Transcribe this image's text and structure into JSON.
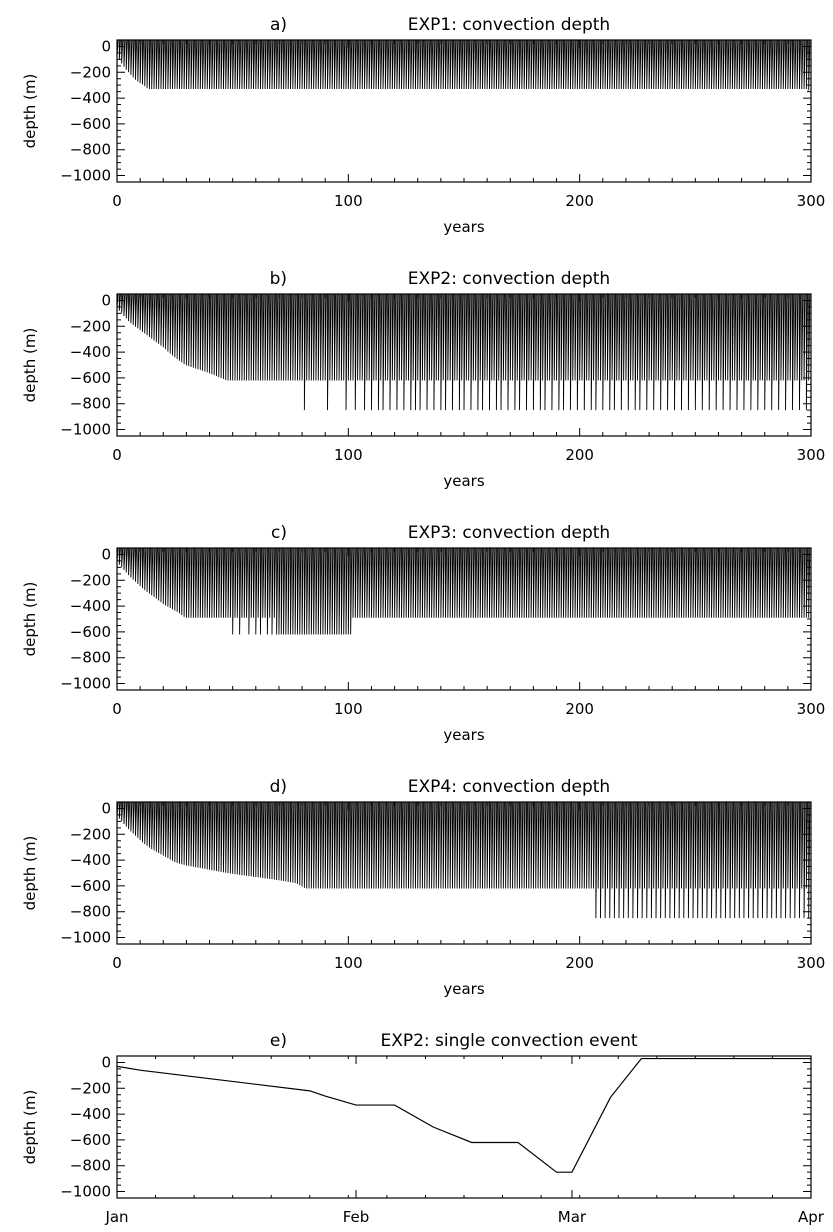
{
  "figure": {
    "background": "#ffffff",
    "ink": "#000000"
  },
  "chart_data": [
    {
      "id": "a",
      "type": "line",
      "panel_label": "a)",
      "title": "EXP1: convection depth",
      "xlabel": "years",
      "ylabel": "depth (m)",
      "xlim": [
        0,
        300
      ],
      "ylim": [
        -1050,
        50
      ],
      "xticks": [
        0,
        100,
        200,
        300
      ],
      "yticks": [
        0,
        -200,
        -400,
        -600,
        -800,
        -1000
      ],
      "series": [
        {
          "style": "annual-convection-spikes",
          "depth_envelope": {
            "x": [
              0,
              2,
              4,
              6,
              8,
              10,
              12,
              14,
              299,
              300
            ],
            "y": [
              -50,
              -120,
              -170,
              -210,
              -250,
              -280,
              -300,
              -330,
              -330,
              -350
            ]
          },
          "convection_years": {
            "start": 0,
            "end": 300,
            "step": 1
          }
        }
      ]
    },
    {
      "id": "b",
      "type": "line",
      "panel_label": "b)",
      "title": "EXP2: convection depth",
      "xlabel": "years",
      "ylabel": "depth (m)",
      "xlim": [
        0,
        300
      ],
      "ylim": [
        -1050,
        50
      ],
      "xticks": [
        0,
        100,
        200,
        300
      ],
      "yticks": [
        0,
        -200,
        -400,
        -600,
        -800,
        -1000
      ],
      "series": [
        {
          "style": "annual-convection-spikes",
          "depth_envelope": {
            "x": [
              0,
              3,
              6,
              9,
              12,
              15,
              18,
              21,
              24,
              27,
              30,
              35,
              40,
              44,
              48,
              60,
              80,
              300
            ],
            "y": [
              -50,
              -110,
              -170,
              -210,
              -250,
              -290,
              -330,
              -370,
              -420,
              -460,
              -500,
              -530,
              -560,
              -590,
              -620,
              -620,
              -620,
              -620
            ]
          },
          "deep_events_year": [
            81,
            91,
            99,
            103,
            107,
            110,
            113,
            115,
            118,
            121,
            124,
            127,
            129,
            131,
            134,
            137,
            140,
            142,
            145,
            148,
            150,
            153,
            156,
            158,
            161,
            164,
            166,
            169,
            172,
            174,
            177,
            180,
            183,
            185,
            188,
            191,
            193,
            196,
            199,
            202,
            205,
            207,
            210,
            213,
            215,
            218,
            221,
            224,
            226,
            229,
            232,
            235,
            238,
            241,
            244,
            247,
            250,
            253,
            256,
            259,
            262,
            265,
            268,
            271,
            274,
            277,
            280,
            283,
            286,
            289,
            292,
            295,
            298
          ],
          "deep_depth": -850,
          "convection_years": {
            "start": 0,
            "end": 300,
            "step": 1
          }
        }
      ]
    },
    {
      "id": "c",
      "type": "line",
      "panel_label": "c)",
      "title": "EXP3: convection depth",
      "xlabel": "years",
      "ylabel": "depth (m)",
      "xlim": [
        0,
        300
      ],
      "ylim": [
        -1050,
        50
      ],
      "xticks": [
        0,
        100,
        200,
        300
      ],
      "yticks": [
        0,
        -200,
        -400,
        -600,
        -800,
        -1000
      ],
      "series": [
        {
          "style": "annual-convection-spikes",
          "depth_envelope": {
            "x": [
              0,
              3,
              6,
              9,
              12,
              15,
              18,
              21,
              24,
              27,
              30,
              40,
              300
            ],
            "y": [
              -50,
              -110,
              -170,
              -220,
              -270,
              -310,
              -350,
              -390,
              -420,
              -450,
              -490,
              -490,
              -490
            ]
          },
          "deep_events_year": [
            50,
            53,
            57,
            60,
            62,
            65,
            67,
            69,
            70,
            71,
            72,
            73,
            74,
            75,
            76,
            77,
            78,
            79,
            80,
            81,
            82,
            83,
            84,
            85,
            86,
            87,
            88,
            89,
            90,
            91,
            92,
            93,
            94,
            95,
            96,
            97,
            98,
            99,
            100,
            101
          ],
          "deep_depth": -620,
          "convection_years": {
            "start": 0,
            "end": 300,
            "step": 1
          }
        }
      ]
    },
    {
      "id": "d",
      "type": "line",
      "panel_label": "d)",
      "title": "EXP4: convection depth",
      "xlabel": "years",
      "ylabel": "depth (m)",
      "xlim": [
        0,
        300
      ],
      "ylim": [
        -1050,
        50
      ],
      "xticks": [
        0,
        100,
        200,
        300
      ],
      "yticks": [
        0,
        -200,
        -400,
        -600,
        -800,
        -1000
      ],
      "series": [
        {
          "style": "annual-convection-spikes",
          "depth_envelope": {
            "x": [
              0,
              3,
              6,
              9,
              12,
              15,
              18,
              22,
              26,
              30,
              36,
              42,
              48,
              56,
              64,
              72,
              78,
              82,
              300
            ],
            "y": [
              -50,
              -110,
              -170,
              -220,
              -270,
              -310,
              -340,
              -380,
              -420,
              -440,
              -460,
              -480,
              -500,
              -520,
              -540,
              -560,
              -580,
              -620,
              -620
            ]
          },
          "deep_events_year": [
            207,
            209,
            211,
            213,
            215,
            217,
            219,
            221,
            223,
            225,
            227,
            229,
            231,
            233,
            235,
            237,
            239,
            241,
            243,
            245,
            247,
            249,
            251,
            253,
            255,
            257,
            259,
            261,
            263,
            265,
            267,
            269,
            271,
            273,
            275,
            277,
            279,
            281,
            283,
            285,
            287,
            289,
            291,
            293,
            295,
            297,
            299
          ],
          "deep_depth": -850,
          "convection_years": {
            "start": 0,
            "end": 300,
            "step": 1
          }
        }
      ]
    },
    {
      "id": "e",
      "type": "line",
      "panel_label": "e)",
      "title": "EXP2: single convection event",
      "xlabel": "",
      "ylabel": "depth (m)",
      "xlim": [
        0,
        90
      ],
      "ylim": [
        -1050,
        50
      ],
      "xtick_positions": [
        0,
        31,
        59,
        90
      ],
      "xticks": [
        "Jan",
        "Feb",
        "Mar",
        "Apr"
      ],
      "yticks": [
        0,
        -200,
        -400,
        -600,
        -800,
        -1000
      ],
      "series": [
        {
          "x": [
            0,
            3,
            25,
            27,
            31,
            36,
            41,
            46,
            52,
            57,
            59,
            64,
            68,
            90
          ],
          "y": [
            -30,
            -60,
            -220,
            -260,
            -330,
            -330,
            -500,
            -620,
            -620,
            -850,
            -850,
            -270,
            30,
            30
          ]
        }
      ]
    }
  ]
}
